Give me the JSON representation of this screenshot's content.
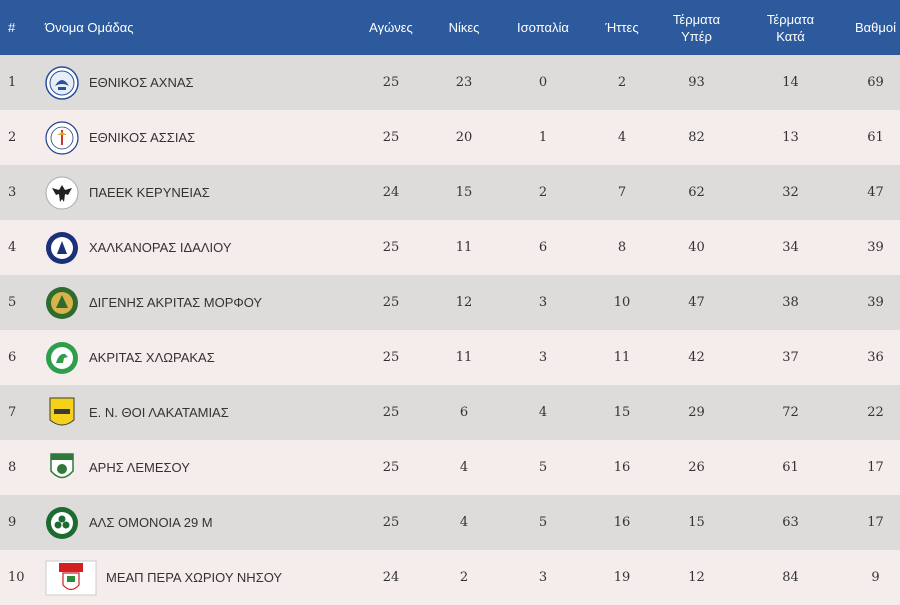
{
  "header": {
    "pos": "#",
    "team": "Όνομα Ομάδας",
    "played": "Αγώνες",
    "wins": "Νίκες",
    "draws": "Ισοπαλία",
    "losses": "Ήττες",
    "goals_for_1": "Τέρματα",
    "goals_for_2": "Υπέρ",
    "goals_against_1": "Τέρματα",
    "goals_against_2": "Κατά",
    "points": "Βαθμοί"
  },
  "rows": [
    {
      "pos": "1",
      "team": "ΕΘΝΙΚΟΣ ΑΧΝΑΣ",
      "logo": "ethnikos-achnas-logo-icon",
      "played": "25",
      "wins": "23",
      "draws": "0",
      "losses": "2",
      "gf": "93",
      "ga": "14",
      "pts": "69"
    },
    {
      "pos": "2",
      "team": "ΕΘΝΙΚΟΣ ΑΣΣΙΑΣ",
      "logo": "ethnikos-assias-logo-icon",
      "played": "25",
      "wins": "20",
      "draws": "1",
      "losses": "4",
      "gf": "82",
      "ga": "13",
      "pts": "61"
    },
    {
      "pos": "3",
      "team": "ΠΑΕΕΚ ΚΕΡΥΝΕΙΑΣ",
      "logo": "paeek-logo-icon",
      "played": "24",
      "wins": "15",
      "draws": "2",
      "losses": "7",
      "gf": "62",
      "ga": "32",
      "pts": "47"
    },
    {
      "pos": "4",
      "team": "ΧΑΛΚΑΝΟΡΑΣ ΙΔΑΛΙΟΥ",
      "logo": "chalkanoras-logo-icon",
      "played": "25",
      "wins": "11",
      "draws": "6",
      "losses": "8",
      "gf": "40",
      "ga": "34",
      "pts": "39"
    },
    {
      "pos": "5",
      "team": "ΔΙΓΕΝΗΣ ΑΚΡΙΤΑΣ ΜΟΡΦΟΥ",
      "logo": "digenis-morfou-logo-icon",
      "played": "25",
      "wins": "12",
      "draws": "3",
      "losses": "10",
      "gf": "47",
      "ga": "38",
      "pts": "39"
    },
    {
      "pos": "6",
      "team": "ΑΚΡΙΤΑΣ ΧΛΩΡΑΚΑΣ",
      "logo": "akritas-chlorakas-logo-icon",
      "played": "25",
      "wins": "11",
      "draws": "3",
      "losses": "11",
      "gf": "42",
      "ga": "37",
      "pts": "36"
    },
    {
      "pos": "7",
      "team": "Ε. Ν. ΘΟΙ ΛΑΚΑΤΑΜΙΑΣ",
      "logo": "thoi-lakatamias-logo-icon",
      "played": "25",
      "wins": "6",
      "draws": "4",
      "losses": "15",
      "gf": "29",
      "ga": "72",
      "pts": "22"
    },
    {
      "pos": "8",
      "team": "ΑΡΗΣ ΛΕΜΕΣΟΥ",
      "logo": "aris-limassol-logo-icon",
      "played": "25",
      "wins": "4",
      "draws": "5",
      "losses": "16",
      "gf": "26",
      "ga": "61",
      "pts": "17"
    },
    {
      "pos": "9",
      "team": "ΑΛΣ ΟΜΟΝΟΙΑ 29 Μ",
      "logo": "omonia-29m-logo-icon",
      "played": "25",
      "wins": "4",
      "draws": "5",
      "losses": "16",
      "gf": "15",
      "ga": "63",
      "pts": "17"
    },
    {
      "pos": "10",
      "team": "ΜΕΑΠ ΠΕΡΑ ΧΩΡΙΟΥ ΝΗΣΟΥ",
      "logo": "meap-logo-icon",
      "played": "24",
      "wins": "2",
      "draws": "3",
      "losses": "19",
      "gf": "12",
      "ga": "84",
      "pts": "9"
    }
  ],
  "colors": {
    "header_bg": "#2d5a9c",
    "row_odd": "#dddcdb",
    "row_even": "#f5ecec",
    "text": "#333333"
  }
}
